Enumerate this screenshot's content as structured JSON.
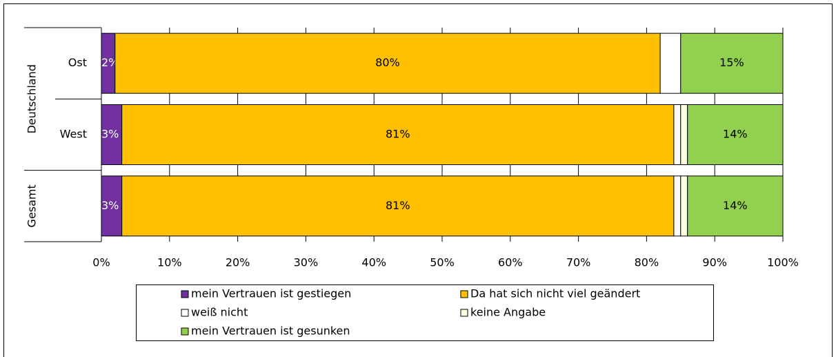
{
  "chart_data": {
    "type": "stacked-barh",
    "categories": [
      "Ost",
      "West",
      null
    ],
    "groups": [
      {
        "label": "Deutschland",
        "size": 2
      },
      {
        "label": "Gesamt",
        "size": 1
      }
    ],
    "series": [
      {
        "name": "mein Vertrauen ist gestiegen",
        "color": "#7030a0",
        "values": [
          2,
          3,
          3
        ],
        "value_labels": [
          "2%",
          "3%",
          "3%"
        ]
      },
      {
        "name": "Da hat sich nicht viel geändert",
        "color": "#ffc000",
        "values": [
          80,
          81,
          81
        ],
        "value_labels": [
          "80%",
          "81%",
          "81%"
        ]
      },
      {
        "name": "weiß nicht",
        "color": "#ffffff",
        "values": [
          3,
          1,
          1
        ]
      },
      {
        "name": "keine Angabe",
        "color": "#ffffe0",
        "values": [
          0,
          1,
          1
        ]
      },
      {
        "name": "mein Vertrauen ist gesunken",
        "color": "#92d050",
        "values": [
          15,
          14,
          14
        ],
        "value_labels": [
          "15%",
          "14%",
          "14%"
        ]
      }
    ],
    "xlim": [
      0,
      100
    ],
    "xticks": [
      {
        "value": 0,
        "label": "0%"
      },
      {
        "value": 10,
        "label": "10%"
      },
      {
        "value": 20,
        "label": "20%"
      },
      {
        "value": 30,
        "label": "30%"
      },
      {
        "value": 40,
        "label": "40%"
      },
      {
        "value": 50,
        "label": "50%"
      },
      {
        "value": 60,
        "label": "60%"
      },
      {
        "value": 70,
        "label": "70%"
      },
      {
        "value": 80,
        "label": "80%"
      },
      {
        "value": 90,
        "label": "90%"
      },
      {
        "value": 100,
        "label": "100%"
      }
    ],
    "grid": true
  }
}
